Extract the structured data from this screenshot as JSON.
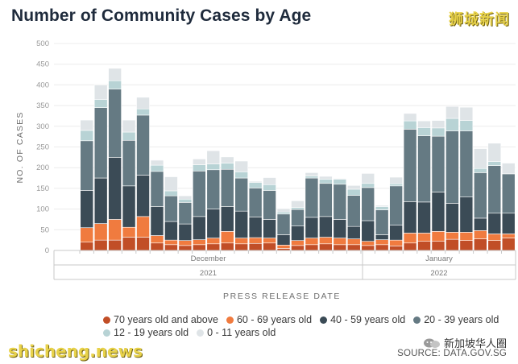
{
  "title": "Number of Community Cases by Age",
  "logo_text": "狮城新闻",
  "watermark": "shicheng.news",
  "wechat_account": "新加坡华人圈",
  "source": "SOURCE: DATA.GOV.SG",
  "chart_data": {
    "type": "bar",
    "stacked": true,
    "title": "Number of Community Cases by Age",
    "xlabel": "PRESS RELEASE DATE",
    "ylabel": "NO. OF CASES",
    "ylim": [
      0,
      500
    ],
    "yticks": [
      0,
      50,
      100,
      150,
      200,
      250,
      300,
      350,
      400,
      450,
      500
    ],
    "grid": true,
    "legend_position": "bottom",
    "month_labels": [
      {
        "label": "December",
        "year": "2021"
      },
      {
        "label": "January",
        "year": "2022"
      }
    ],
    "colors": [
      "#c14e27",
      "#f07b3f",
      "#3b4b56",
      "#657a83",
      "#b8d3d5",
      "#dfe4e7"
    ],
    "series": [
      {
        "name": "70 years old and above",
        "values": [
          20,
          25,
          25,
          32,
          32,
          18,
          14,
          12,
          14,
          16,
          18,
          16,
          17,
          18,
          5,
          12,
          14,
          16,
          14,
          14,
          12,
          14,
          11,
          18,
          22,
          22,
          27,
          24,
          28,
          24,
          30
        ]
      },
      {
        "name": "60 - 69 years old",
        "values": [
          35,
          40,
          50,
          24,
          50,
          18,
          11,
          12,
          12,
          14,
          28,
          14,
          14,
          12,
          8,
          12,
          16,
          16,
          16,
          14,
          10,
          12,
          14,
          24,
          20,
          24,
          17,
          20,
          20,
          16,
          10
        ]
      },
      {
        "name": "40 - 59 years old",
        "values": [
          90,
          110,
          150,
          100,
          100,
          70,
          45,
          40,
          56,
          70,
          60,
          65,
          50,
          45,
          25,
          35,
          50,
          50,
          45,
          30,
          50,
          12,
          36,
          76,
          75,
          95,
          70,
          85,
          30,
          50,
          50
        ]
      },
      {
        "name": "20 - 39 years old",
        "values": [
          120,
          170,
          165,
          110,
          145,
          85,
          62,
          52,
          110,
          95,
          90,
          80,
          70,
          70,
          50,
          40,
          95,
          80,
          85,
          75,
          80,
          60,
          95,
          175,
          160,
          135,
          175,
          160,
          110,
          115,
          95
        ]
      },
      {
        "name": "12 - 19 years old",
        "values": [
          25,
          20,
          20,
          20,
          15,
          15,
          12,
          8,
          15,
          14,
          15,
          15,
          13,
          14,
          5,
          5,
          5,
          10,
          12,
          15,
          10,
          8,
          5,
          20,
          20,
          20,
          30,
          25,
          10,
          10,
          0
        ]
      },
      {
        "name": "0 - 11 years old",
        "values": [
          25,
          35,
          30,
          29,
          28,
          12,
          34,
          8,
          14,
          32,
          15,
          26,
          3,
          17,
          8,
          16,
          8,
          7,
          2,
          9,
          24,
          3,
          16,
          18,
          16,
          18,
          29,
          32,
          48,
          44,
          26
        ]
      }
    ]
  }
}
